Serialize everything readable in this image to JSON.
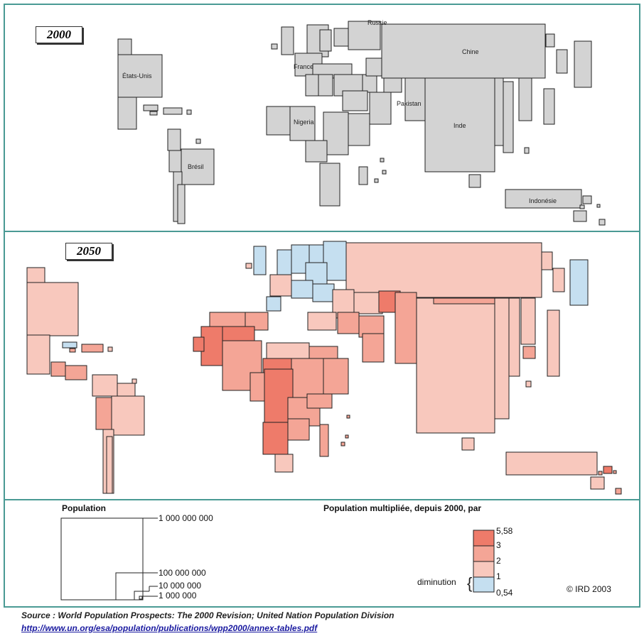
{
  "map2000": {
    "year": "2000",
    "labels": {
      "usa": "États-Unis",
      "brazil": "Brésil",
      "france": "France",
      "russia": "Russie",
      "china": "Chine",
      "pakistan": "Pakistan",
      "nigeria": "Nigeria",
      "india": "Inde",
      "indonesia": "Indonésie"
    }
  },
  "map2050": {
    "year": "2050"
  },
  "legend_population": {
    "title": "Population",
    "levels": [
      "1 000 000 000",
      "100 000 000",
      "10 000 000",
      "1 000 000"
    ]
  },
  "legend_growth": {
    "title": "Population multipliée, depuis 2000, par",
    "breaks": [
      "5,58",
      "3",
      "2",
      "1",
      "0,54"
    ],
    "decline_label": "diminution",
    "colors": {
      "c5": "#ee7b6a",
      "c4": "#f4a596",
      "c3": "#f8c8bd",
      "decline": "#c5dff0",
      "gray": "#d3d3d3"
    }
  },
  "copyright": "© IRD 2003",
  "source": "Source : World Population Prospects: The 2000 Revision; United Nation Population Division",
  "url": "http://www.un.org/esa/population/publications/wpp2000/annex-tables.pdf"
}
